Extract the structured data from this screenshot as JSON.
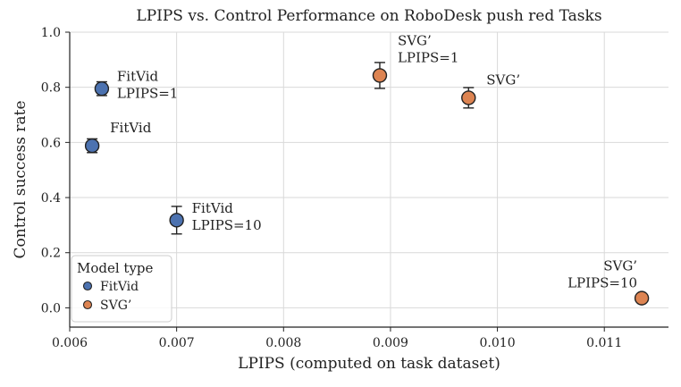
{
  "chart_data": {
    "type": "scatter",
    "title": "LPIPS vs. Control Performance on RoboDesk push red Tasks",
    "xlabel": "LPIPS (computed on task dataset)",
    "ylabel": "Control success rate",
    "xlim": [
      0.006,
      0.0116
    ],
    "ylim": [
      -0.07,
      1.0
    ],
    "xticks": [
      0.006,
      0.007,
      0.008,
      0.009,
      0.01,
      0.011
    ],
    "xtick_labels": [
      "0.006",
      "0.007",
      "0.008",
      "0.009",
      "0.010",
      "0.011"
    ],
    "yticks": [
      0.0,
      0.2,
      0.4,
      0.6,
      0.8,
      1.0
    ],
    "ytick_labels": [
      "0.0",
      "0.2",
      "0.4",
      "0.6",
      "0.8",
      "1.0"
    ],
    "grid": true,
    "legend": {
      "title": "Model type",
      "position": "bottom-left",
      "entries": [
        {
          "label": "FitVid",
          "color": "#4c72b0"
        },
        {
          "label": "SVG’",
          "color": "#dd8452"
        }
      ]
    },
    "series": [
      {
        "name": "FitVid",
        "color": "#4c72b0",
        "points": [
          {
            "x": 0.00621,
            "y": 0.588,
            "err": 0.025,
            "label": [
              "FitVid"
            ],
            "label_pos": "upper-right"
          },
          {
            "x": 0.0063,
            "y": 0.795,
            "err": 0.025,
            "label": [
              "FitVid",
              "LPIPS=1"
            ],
            "label_pos": "right"
          },
          {
            "x": 0.007,
            "y": 0.318,
            "err": 0.05,
            "label": [
              "FitVid",
              "LPIPS=10"
            ],
            "label_pos": "right"
          }
        ]
      },
      {
        "name": "SVG’",
        "color": "#dd8452",
        "points": [
          {
            "x": 0.0089,
            "y": 0.843,
            "err": 0.047,
            "label": [
              "SVG’",
              "LPIPS=1"
            ],
            "label_pos": "upper-right"
          },
          {
            "x": 0.00973,
            "y": 0.762,
            "err": 0.037,
            "label": [
              "SVG’"
            ],
            "label_pos": "upper-right"
          },
          {
            "x": 0.01135,
            "y": 0.035,
            "err": 0.0,
            "label": [
              "SVG’",
              "LPIPS=10"
            ],
            "label_pos": "upper-left"
          }
        ]
      }
    ]
  }
}
